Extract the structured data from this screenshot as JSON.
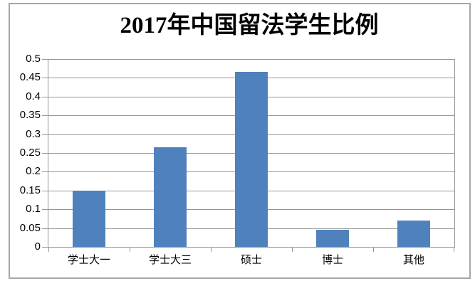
{
  "chart_data": {
    "type": "bar",
    "title": "2017年中国留法学生比例",
    "categories": [
      "学士大一",
      "学士大三",
      "硕士",
      "博士",
      "其他"
    ],
    "values": [
      0.15,
      0.265,
      0.465,
      0.045,
      0.07
    ],
    "xlabel": "",
    "ylabel": "",
    "ylim": [
      0,
      0.5
    ],
    "ytick_step": 0.05,
    "ytick_labels": [
      "0",
      "0.05",
      "0.1",
      "0.15",
      "0.2",
      "0.25",
      "0.3",
      "0.35",
      "0.4",
      "0.45",
      "0.5"
    ],
    "grid": true,
    "legend_position": "none",
    "bar_color": "#4f81bd",
    "gridline_color": "#969696",
    "axis_color": "#969696",
    "frame_border_color": "#a6a6a6",
    "background_color": "#ffffff",
    "title_color": "#000000",
    "tick_label_color": "#000000"
  }
}
